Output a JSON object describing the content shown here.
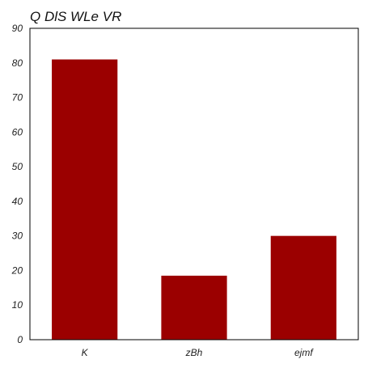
{
  "chart_data": {
    "type": "bar",
    "title": "Q DlS WLe  VR",
    "xlabel": "",
    "ylabel": "",
    "categories": [
      "K",
      "zBh",
      "ejmf"
    ],
    "values": [
      81,
      18.5,
      30
    ],
    "ylim": [
      0,
      90
    ],
    "yticks": [
      0,
      10,
      20,
      30,
      40,
      50,
      60,
      70,
      80,
      90
    ],
    "bar_color": "#9b0000",
    "grid": false,
    "legend": "none"
  }
}
